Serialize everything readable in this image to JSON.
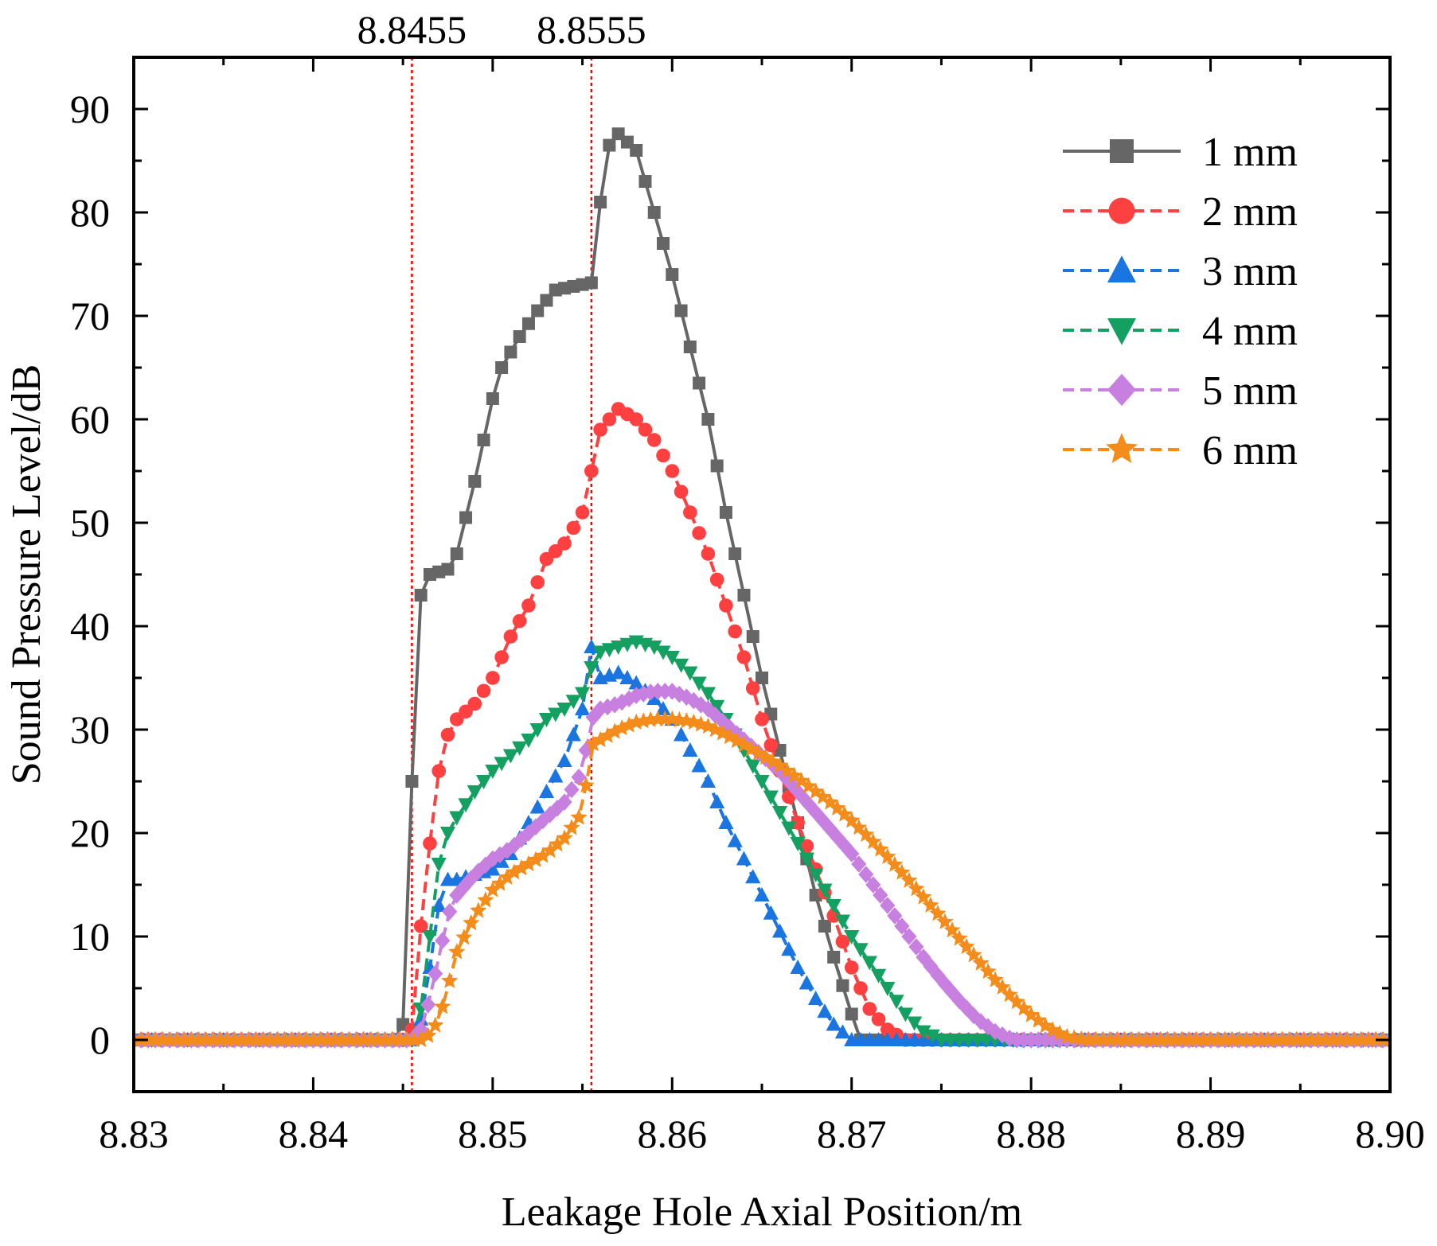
{
  "chart_data": {
    "type": "line",
    "title": "",
    "xlabel": "Leakage Hole Axial Position/m",
    "ylabel": "Sound Pressure Level/dB",
    "xlim": [
      8.83,
      8.9
    ],
    "ylim": [
      -5,
      95
    ],
    "xticks": [
      8.83,
      8.84,
      8.85,
      8.86,
      8.87,
      8.88,
      8.89,
      8.9
    ],
    "xtick_labels": [
      "8.83",
      "8.84",
      "8.85",
      "8.86",
      "8.87",
      "8.88",
      "8.89",
      "8.90"
    ],
    "yticks": [
      0,
      10,
      20,
      30,
      40,
      50,
      60,
      70,
      80,
      90
    ],
    "ytick_labels": [
      "0",
      "10",
      "20",
      "30",
      "40",
      "50",
      "60",
      "70",
      "80",
      "90"
    ],
    "legend_position": "top-right",
    "reference_lines": [
      {
        "x": 8.8455,
        "label": "8.8455",
        "color": "#ff0000"
      },
      {
        "x": 8.8555,
        "label": "8.8555",
        "color": "#ff0000"
      }
    ],
    "series": [
      {
        "name": "1 mm",
        "color": "#666666",
        "marker": "square",
        "dash": "solid",
        "step": 0.0005,
        "keypoints": [
          [
            8.83,
            0
          ],
          [
            8.8446,
            0
          ],
          [
            8.845,
            1.5
          ],
          [
            8.8452,
            4
          ],
          [
            8.8455,
            25
          ],
          [
            8.846,
            43
          ],
          [
            8.8465,
            45
          ],
          [
            8.8475,
            45.5
          ],
          [
            8.848,
            47
          ],
          [
            8.849,
            54
          ],
          [
            8.85,
            62
          ],
          [
            8.8505,
            65
          ],
          [
            8.8515,
            68
          ],
          [
            8.8525,
            70.5
          ],
          [
            8.8535,
            72.5
          ],
          [
            8.8555,
            73.2
          ],
          [
            8.856,
            81
          ],
          [
            8.8565,
            86.5
          ],
          [
            8.857,
            87.6
          ],
          [
            8.858,
            86
          ],
          [
            8.859,
            80
          ],
          [
            8.86,
            74
          ],
          [
            8.861,
            67
          ],
          [
            8.862,
            60
          ],
          [
            8.863,
            51
          ],
          [
            8.864,
            43
          ],
          [
            8.865,
            35
          ],
          [
            8.866,
            28
          ],
          [
            8.867,
            21
          ],
          [
            8.868,
            14
          ],
          [
            8.869,
            8
          ],
          [
            8.87,
            2.5
          ],
          [
            8.8705,
            0
          ],
          [
            8.9,
            0
          ]
        ]
      },
      {
        "name": "2 mm",
        "color": "#ff4040",
        "marker": "circle",
        "dash": "dash",
        "step": 0.0005,
        "keypoints": [
          [
            8.83,
            0
          ],
          [
            8.845,
            0
          ],
          [
            8.8455,
            1
          ],
          [
            8.846,
            11
          ],
          [
            8.8465,
            19
          ],
          [
            8.847,
            26
          ],
          [
            8.8475,
            29.5
          ],
          [
            8.848,
            31
          ],
          [
            8.849,
            32.5
          ],
          [
            8.85,
            35
          ],
          [
            8.851,
            39
          ],
          [
            8.852,
            42
          ],
          [
            8.853,
            46.5
          ],
          [
            8.854,
            48
          ],
          [
            8.855,
            51
          ],
          [
            8.8555,
            55
          ],
          [
            8.856,
            59
          ],
          [
            8.857,
            61
          ],
          [
            8.858,
            60
          ],
          [
            8.859,
            58
          ],
          [
            8.86,
            55
          ],
          [
            8.861,
            51
          ],
          [
            8.862,
            47
          ],
          [
            8.863,
            42
          ],
          [
            8.864,
            37
          ],
          [
            8.865,
            31
          ],
          [
            8.866,
            26
          ],
          [
            8.867,
            21
          ],
          [
            8.868,
            16.5
          ],
          [
            8.869,
            12
          ],
          [
            8.87,
            7
          ],
          [
            8.871,
            3
          ],
          [
            8.872,
            1
          ],
          [
            8.873,
            0
          ],
          [
            8.9,
            0
          ]
        ]
      },
      {
        "name": "3 mm",
        "color": "#1a75e0",
        "marker": "triangle-up",
        "dash": "dash",
        "step": 0.0005,
        "keypoints": [
          [
            8.83,
            0
          ],
          [
            8.8455,
            0
          ],
          [
            8.846,
            2
          ],
          [
            8.8465,
            7
          ],
          [
            8.847,
            13
          ],
          [
            8.8475,
            15.5
          ],
          [
            8.848,
            15.5
          ],
          [
            8.849,
            16
          ],
          [
            8.85,
            16.5
          ],
          [
            8.851,
            18
          ],
          [
            8.852,
            21
          ],
          [
            8.853,
            24
          ],
          [
            8.854,
            27
          ],
          [
            8.855,
            32
          ],
          [
            8.8555,
            38
          ],
          [
            8.856,
            35
          ],
          [
            8.857,
            35.5
          ],
          [
            8.858,
            34.5
          ],
          [
            8.859,
            33
          ],
          [
            8.86,
            31
          ],
          [
            8.861,
            28
          ],
          [
            8.862,
            25
          ],
          [
            8.863,
            21
          ],
          [
            8.864,
            17.5
          ],
          [
            8.865,
            14
          ],
          [
            8.866,
            10.5
          ],
          [
            8.867,
            7
          ],
          [
            8.868,
            4
          ],
          [
            8.869,
            1.5
          ],
          [
            8.87,
            0
          ],
          [
            8.9,
            0
          ]
        ]
      },
      {
        "name": "4 mm",
        "color": "#13a060",
        "marker": "triangle-down",
        "dash": "dash",
        "step": 0.0005,
        "keypoints": [
          [
            8.83,
            0
          ],
          [
            8.8455,
            0
          ],
          [
            8.846,
            3
          ],
          [
            8.8465,
            10
          ],
          [
            8.847,
            17
          ],
          [
            8.8475,
            20
          ],
          [
            8.848,
            21.5
          ],
          [
            8.849,
            24
          ],
          [
            8.85,
            26
          ],
          [
            8.851,
            27.5
          ],
          [
            8.852,
            29
          ],
          [
            8.853,
            31
          ],
          [
            8.854,
            32
          ],
          [
            8.855,
            33.5
          ],
          [
            8.8555,
            36
          ],
          [
            8.856,
            37.5
          ],
          [
            8.857,
            38
          ],
          [
            8.858,
            38.5
          ],
          [
            8.859,
            38
          ],
          [
            8.86,
            37
          ],
          [
            8.861,
            35.5
          ],
          [
            8.862,
            33.5
          ],
          [
            8.863,
            31
          ],
          [
            8.864,
            28
          ],
          [
            8.865,
            25
          ],
          [
            8.866,
            22
          ],
          [
            8.867,
            19
          ],
          [
            8.868,
            16
          ],
          [
            8.869,
            13
          ],
          [
            8.87,
            10
          ],
          [
            8.871,
            7.5
          ],
          [
            8.872,
            5
          ],
          [
            8.873,
            2.5
          ],
          [
            8.874,
            0.8
          ],
          [
            8.875,
            0
          ],
          [
            8.8825,
            0
          ],
          [
            8.9,
            0
          ]
        ]
      },
      {
        "name": "5 mm",
        "color": "#c77fe0",
        "marker": "diamond",
        "dash": "dash",
        "step": 0.0004,
        "keypoints": [
          [
            8.83,
            0
          ],
          [
            8.8455,
            0
          ],
          [
            8.846,
            1
          ],
          [
            8.8465,
            4
          ],
          [
            8.847,
            8
          ],
          [
            8.8475,
            12
          ],
          [
            8.848,
            14
          ],
          [
            8.849,
            16
          ],
          [
            8.85,
            17.5
          ],
          [
            8.851,
            18.5
          ],
          [
            8.852,
            20
          ],
          [
            8.853,
            21.5
          ],
          [
            8.854,
            23
          ],
          [
            8.855,
            26
          ],
          [
            8.8555,
            31
          ],
          [
            8.856,
            32
          ],
          [
            8.857,
            32.5
          ],
          [
            8.858,
            33.3
          ],
          [
            8.859,
            33.7
          ],
          [
            8.86,
            33.7
          ],
          [
            8.861,
            33
          ],
          [
            8.862,
            32
          ],
          [
            8.863,
            30.5
          ],
          [
            8.864,
            29
          ],
          [
            8.865,
            27.5
          ],
          [
            8.866,
            26
          ],
          [
            8.867,
            24
          ],
          [
            8.868,
            22
          ],
          [
            8.869,
            20
          ],
          [
            8.87,
            18
          ],
          [
            8.871,
            15.5
          ],
          [
            8.872,
            13
          ],
          [
            8.873,
            10.5
          ],
          [
            8.874,
            8
          ],
          [
            8.875,
            5.8
          ],
          [
            8.876,
            3.8
          ],
          [
            8.877,
            2
          ],
          [
            8.878,
            0.8
          ],
          [
            8.879,
            0
          ],
          [
            8.883,
            0
          ],
          [
            8.9,
            0
          ]
        ]
      },
      {
        "name": "6 mm",
        "color": "#f38c1a",
        "marker": "star",
        "dash": "dash",
        "step": 0.0004,
        "keypoints": [
          [
            8.83,
            0
          ],
          [
            8.846,
            0
          ],
          [
            8.8465,
            0.5
          ],
          [
            8.847,
            2
          ],
          [
            8.8475,
            5
          ],
          [
            8.848,
            8.5
          ],
          [
            8.849,
            12
          ],
          [
            8.85,
            14.5
          ],
          [
            8.851,
            16
          ],
          [
            8.852,
            17
          ],
          [
            8.853,
            18
          ],
          [
            8.854,
            19.5
          ],
          [
            8.855,
            22
          ],
          [
            8.8555,
            28.5
          ],
          [
            8.856,
            29
          ],
          [
            8.857,
            30
          ],
          [
            8.858,
            30.7
          ],
          [
            8.859,
            31
          ],
          [
            8.86,
            31
          ],
          [
            8.861,
            30.8
          ],
          [
            8.862,
            30.3
          ],
          [
            8.863,
            29.5
          ],
          [
            8.864,
            28.5
          ],
          [
            8.865,
            27.5
          ],
          [
            8.866,
            26.5
          ],
          [
            8.867,
            25.3
          ],
          [
            8.868,
            24
          ],
          [
            8.869,
            22.7
          ],
          [
            8.87,
            21.2
          ],
          [
            8.871,
            19.5
          ],
          [
            8.872,
            17.7
          ],
          [
            8.873,
            15.8
          ],
          [
            8.874,
            13.8
          ],
          [
            8.875,
            11.8
          ],
          [
            8.876,
            9.8
          ],
          [
            8.877,
            7.8
          ],
          [
            8.878,
            5.8
          ],
          [
            8.879,
            4
          ],
          [
            8.88,
            2.4
          ],
          [
            8.881,
            1.1
          ],
          [
            8.882,
            0.3
          ],
          [
            8.883,
            0
          ],
          [
            8.887,
            0
          ],
          [
            8.9,
            0
          ]
        ]
      }
    ]
  }
}
